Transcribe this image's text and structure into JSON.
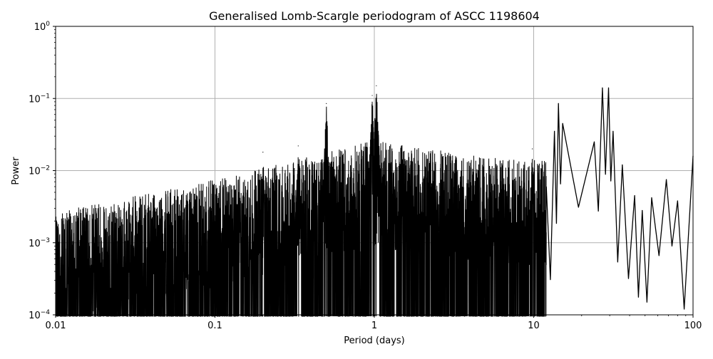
{
  "chart_data": {
    "type": "line",
    "title": "Generalised Lomb-Scargle periodogram of ASCC 1198604",
    "xlabel": "Period (days)",
    "ylabel": "Power",
    "xscale": "log",
    "yscale": "log",
    "xlim": [
      0.01,
      100
    ],
    "ylim": [
      0.0001,
      1
    ],
    "grid": true,
    "line_color": "#000000",
    "grid_color": "#b0b0b0",
    "x_ticks": [
      {
        "value": 0.01,
        "label": "0.01"
      },
      {
        "value": 0.1,
        "label": "0.1"
      },
      {
        "value": 1,
        "label": "1"
      },
      {
        "value": 10,
        "label": "10"
      },
      {
        "value": 100,
        "label": "100"
      }
    ],
    "y_ticks": [
      {
        "value": 0.0001,
        "base": "10",
        "exp": "−4"
      },
      {
        "value": 0.001,
        "base": "10",
        "exp": "−3"
      },
      {
        "value": 0.01,
        "base": "10",
        "exp": "−2"
      },
      {
        "value": 0.1,
        "base": "10",
        "exp": "−1"
      },
      {
        "value": 1,
        "base": "10",
        "exp": "0"
      }
    ],
    "peaks": [
      {
        "x": 0.2,
        "y": 0.018
      },
      {
        "x": 0.333,
        "y": 0.022
      },
      {
        "x": 0.5,
        "y": 0.085
      },
      {
        "x": 0.97,
        "y": 0.11
      },
      {
        "x": 1.03,
        "y": 0.15
      },
      {
        "x": 9.8,
        "y": 0.02
      },
      {
        "x": 13.5,
        "y": 0.035
      },
      {
        "x": 14.3,
        "y": 0.085
      },
      {
        "x": 15.2,
        "y": 0.045
      },
      {
        "x": 24,
        "y": 0.025
      },
      {
        "x": 27,
        "y": 0.14
      },
      {
        "x": 29.5,
        "y": 0.14
      },
      {
        "x": 31.5,
        "y": 0.035
      },
      {
        "x": 36,
        "y": 0.012
      },
      {
        "x": 43,
        "y": 0.0045
      },
      {
        "x": 48,
        "y": 0.0028
      },
      {
        "x": 55,
        "y": 0.0042
      },
      {
        "x": 68,
        "y": 0.0075
      },
      {
        "x": 80,
        "y": 0.0038
      }
    ]
  }
}
